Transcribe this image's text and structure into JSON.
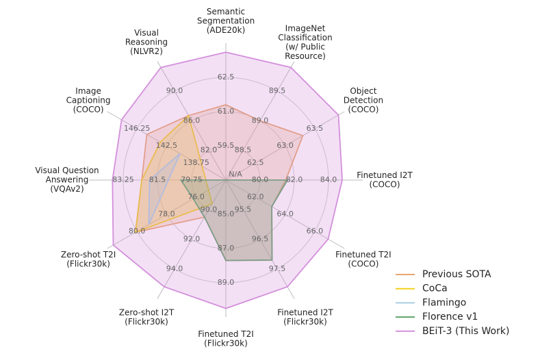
{
  "chart_data": {
    "type": "radar",
    "center_label": "N/A",
    "legend": "lower right",
    "axes": [
      {
        "label": [
          "Semantic",
          "Segmentation",
          "(ADE20k)"
        ],
        "lim": [
          58,
          64
        ],
        "ticks": [
          59.5,
          {
            "value": 61,
            "label": "61.0"
          },
          62.5
        ]
      },
      {
        "label": [
          "ImageNet",
          "Classification",
          "(w/ Public",
          "Resource)"
        ],
        "lim": [
          88,
          90
        ],
        "ticks": [
          88.5,
          {
            "value": 89,
            "label": "89.0"
          },
          89.5
        ]
      },
      {
        "label": [
          "Object",
          "Detection",
          "(COCO)"
        ],
        "lim": [
          62,
          64
        ],
        "ticks": [
          62.5,
          {
            "value": 63,
            "label": "63.0"
          },
          63.5
        ]
      },
      {
        "label": [
          "Finetuned I2T",
          "(COCO)"
        ],
        "lim": [
          78,
          86
        ],
        "ticks": [
          {
            "value": 80,
            "label": "80.0"
          },
          {
            "value": 82,
            "label": "82.0"
          },
          {
            "value": 84,
            "label": "84.0"
          }
        ]
      },
      {
        "label": [
          "Finetuned T2I",
          "(COCO)"
        ],
        "lim": [
          60,
          68
        ],
        "ticks": [
          {
            "value": 62,
            "label": "62.0"
          },
          {
            "value": 64,
            "label": "64.0"
          },
          {
            "value": 66,
            "label": "66.0"
          }
        ]
      },
      {
        "label": [
          "Finetuned I2T",
          "(Flickr30k)"
        ],
        "lim": [
          94.5,
          98.5
        ],
        "ticks": [
          95.5,
          96.5,
          97.5
        ]
      },
      {
        "label": [
          "Finetuned T2I",
          "(Flickr30k)"
        ],
        "lim": [
          83,
          91
        ],
        "ticks": [
          {
            "value": 85,
            "label": "85.0"
          },
          {
            "value": 87,
            "label": "87.0"
          },
          {
            "value": 89,
            "label": "89.0"
          }
        ]
      },
      {
        "label": [
          "Zero-shot I2T",
          "(Flickr30k)"
        ],
        "lim": [
          88,
          96
        ],
        "ticks": [
          {
            "value": 90,
            "label": "90.0"
          },
          {
            "value": 92,
            "label": "92.0"
          },
          {
            "value": 94,
            "label": "94.0"
          }
        ]
      },
      {
        "label": [
          "Zero-shot T2I",
          "(Flickr30k)"
        ],
        "lim": [
          74,
          82
        ],
        "ticks": [
          {
            "value": 76,
            "label": "76.0"
          },
          {
            "value": 78,
            "label": "78.0"
          },
          {
            "value": 80,
            "label": "80.0"
          }
        ]
      },
      {
        "label": [
          "Visual Question",
          "Answering",
          "(VQAv2)"
        ],
        "lim": [
          78,
          85
        ],
        "ticks": [
          79.75,
          81.5,
          83.25
        ]
      },
      {
        "label": [
          "Image",
          "Captioning",
          "(COCO)"
        ],
        "lim": [
          135,
          150
        ],
        "ticks": [
          138.75,
          142.5,
          146.25
        ]
      },
      {
        "label": [
          "Visual",
          "Reasoning",
          "(NLVR2)"
        ],
        "lim": [
          78,
          94
        ],
        "ticks": [
          {
            "value": 82,
            "label": "82.0"
          },
          {
            "value": 86,
            "label": "86.0"
          },
          {
            "value": 90,
            "label": "90.0"
          }
        ]
      }
    ],
    "series": [
      {
        "name": "Previous SOTA",
        "color": "#e8a56e",
        "values": [
          61.3,
          89.0,
          63.3,
          81.5,
          63.1,
          97.2,
          87.7,
          90.5,
          80.1,
          82.3,
          145.0,
          86.7
        ]
      },
      {
        "name": "CoCa",
        "color": "#f2cf1d",
        "values": [
          null,
          null,
          null,
          null,
          null,
          null,
          null,
          89.6,
          80.1,
          82.3,
          143.3,
          86.7
        ]
      },
      {
        "name": "Flamingo",
        "color": "#a6cde0",
        "values": [
          null,
          null,
          null,
          null,
          null,
          null,
          null,
          null,
          79.2,
          81.9,
          140.8,
          null
        ]
      },
      {
        "name": "Florence v1",
        "color": "#5ba367",
        "values": [
          null,
          null,
          null,
          81.6,
          63.1,
          97.2,
          87.7,
          90.5,
          76.2,
          80.3,
          null,
          null
        ]
      },
      {
        "name": "BEiT-3 (This Work)",
        "color": "#d38fdb",
        "values": [
          63.6,
          89.9,
          63.9,
          84.8,
          66.9,
          98.1,
          90.5,
          95.2,
          81.6,
          83.8,
          148.2,
          93.2
        ]
      }
    ]
  }
}
